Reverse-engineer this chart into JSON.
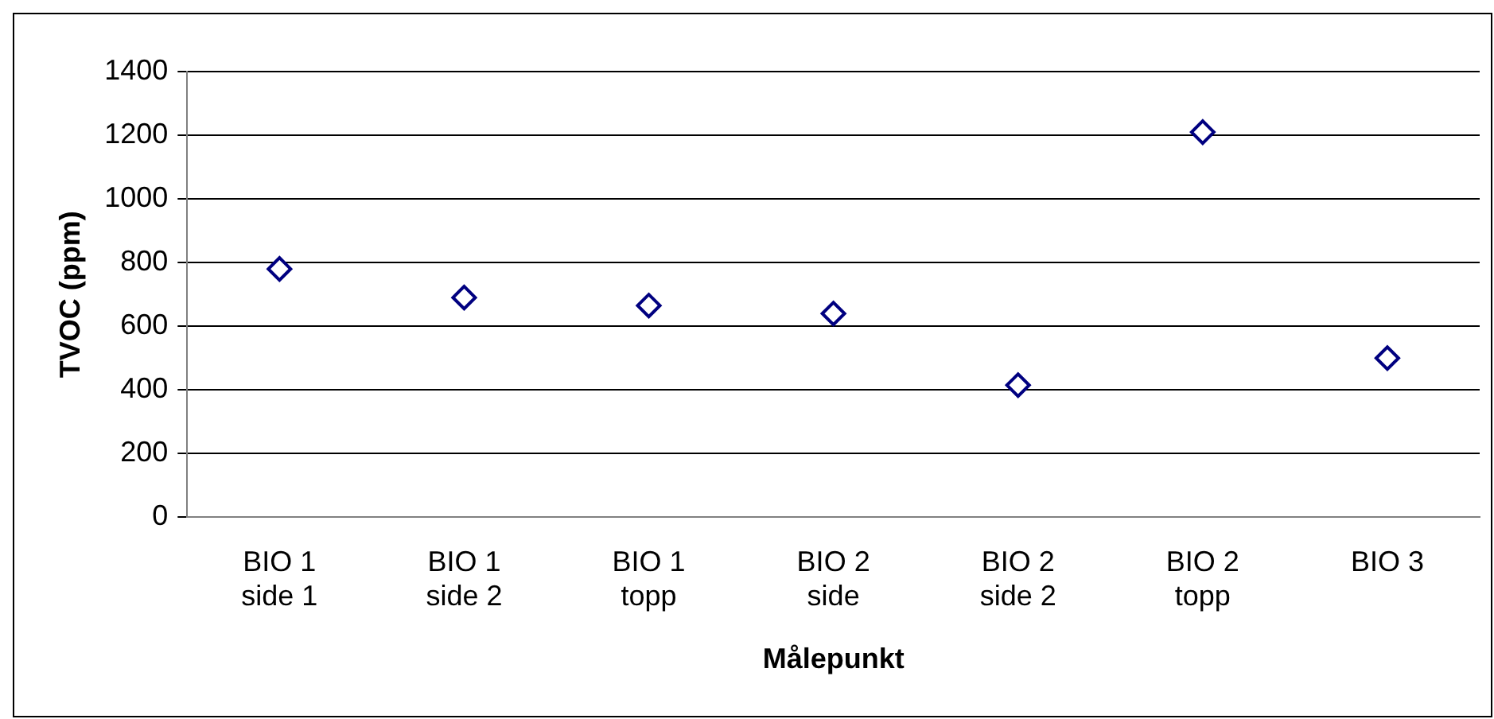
{
  "chart_data": {
    "type": "scatter",
    "xlabel": "Målepunkt",
    "ylabel": "TVOC (ppm)",
    "categories": [
      "BIO 1\nside 1",
      "BIO 1\nside 2",
      "BIO 1\ntopp",
      "BIO 2\nside",
      "BIO 2\nside 2",
      "BIO 2\ntopp",
      "BIO 3"
    ],
    "series": [
      {
        "color": "#000080",
        "values": [
          780,
          690,
          665,
          640,
          415,
          1210,
          500
        ]
      }
    ],
    "ylim": [
      0,
      1400
    ],
    "yticks": [
      0,
      200,
      400,
      600,
      800,
      1000,
      1200,
      1400
    ],
    "grid": "y",
    "legend": false,
    "marker": "diamond"
  }
}
